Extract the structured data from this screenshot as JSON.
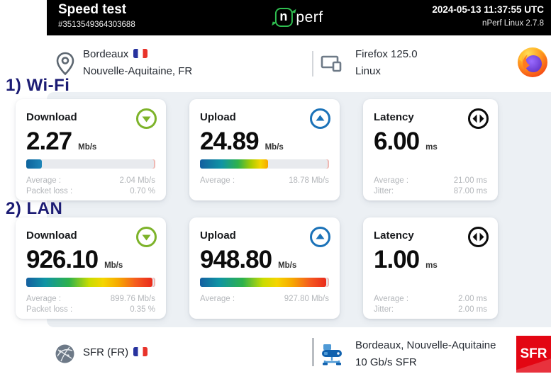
{
  "header": {
    "title": "Speed test",
    "test_id": "#3513549364303688",
    "logo": {
      "n": "n",
      "suffix": "perf"
    },
    "timestamp": "2024-05-13 11:37:55 UTC",
    "version": "nPerf Linux 2.7.8"
  },
  "client": {
    "city": "Bordeaux",
    "region": "Nouvelle-Aquitaine, FR",
    "browser": "Firefox 125.0",
    "os": "Linux"
  },
  "annotations": {
    "wifi": "1) Wi-Fi",
    "lan": "2) LAN"
  },
  "results": [
    {
      "section": "Wi-Fi",
      "cards": [
        {
          "title": "Download",
          "value": "2.27",
          "unit": "Mb/s",
          "bar": {
            "percent": 12,
            "style": "blue"
          },
          "stats": [
            {
              "label": "Average :",
              "value": "2.04 Mb/s"
            },
            {
              "label": "Packet loss :",
              "value": "0.70 %"
            }
          ]
        },
        {
          "title": "Upload",
          "value": "24.89",
          "unit": "Mb/s",
          "bar": {
            "percent": 53,
            "style": "mid"
          },
          "stats": [
            {
              "label": "Average :",
              "value": "18.78 Mb/s"
            }
          ]
        },
        {
          "title": "Latency",
          "value": "6.00",
          "unit": "ms",
          "stats": [
            {
              "label": "Average :",
              "value": "21.00 ms"
            },
            {
              "label": "Jitter:",
              "value": "87.00 ms"
            }
          ]
        }
      ]
    },
    {
      "section": "LAN",
      "cards": [
        {
          "title": "Download",
          "value": "926.10",
          "unit": "Mb/s",
          "bar": {
            "percent": 98,
            "style": "full"
          },
          "stats": [
            {
              "label": "Average :",
              "value": "899.76 Mb/s"
            },
            {
              "label": "Packet loss :",
              "value": "0.35 %"
            }
          ]
        },
        {
          "title": "Upload",
          "value": "948.80",
          "unit": "Mb/s",
          "bar": {
            "percent": 98,
            "style": "full"
          },
          "stats": [
            {
              "label": "Average :",
              "value": "927.80 Mb/s"
            }
          ]
        },
        {
          "title": "Latency",
          "value": "1.00",
          "unit": "ms",
          "stats": [
            {
              "label": "Average :",
              "value": "2.00 ms"
            },
            {
              "label": "Jitter:",
              "value": "2.00 ms"
            }
          ]
        }
      ]
    }
  ],
  "footer": {
    "isp": "SFR (FR)",
    "server_location": "Bordeaux, Nouvelle-Aquitaine",
    "server_link": "10 Gb/s SFR",
    "server_logo": "SFR"
  },
  "colors": {
    "download_green": "#7db32a",
    "upload_blue": "#1b72b8",
    "latency_black": "#0c0c0c",
    "sfr_red": "#e30613",
    "annotation_navy": "#1c1c74",
    "panel_bg": "#ecf0f4"
  }
}
